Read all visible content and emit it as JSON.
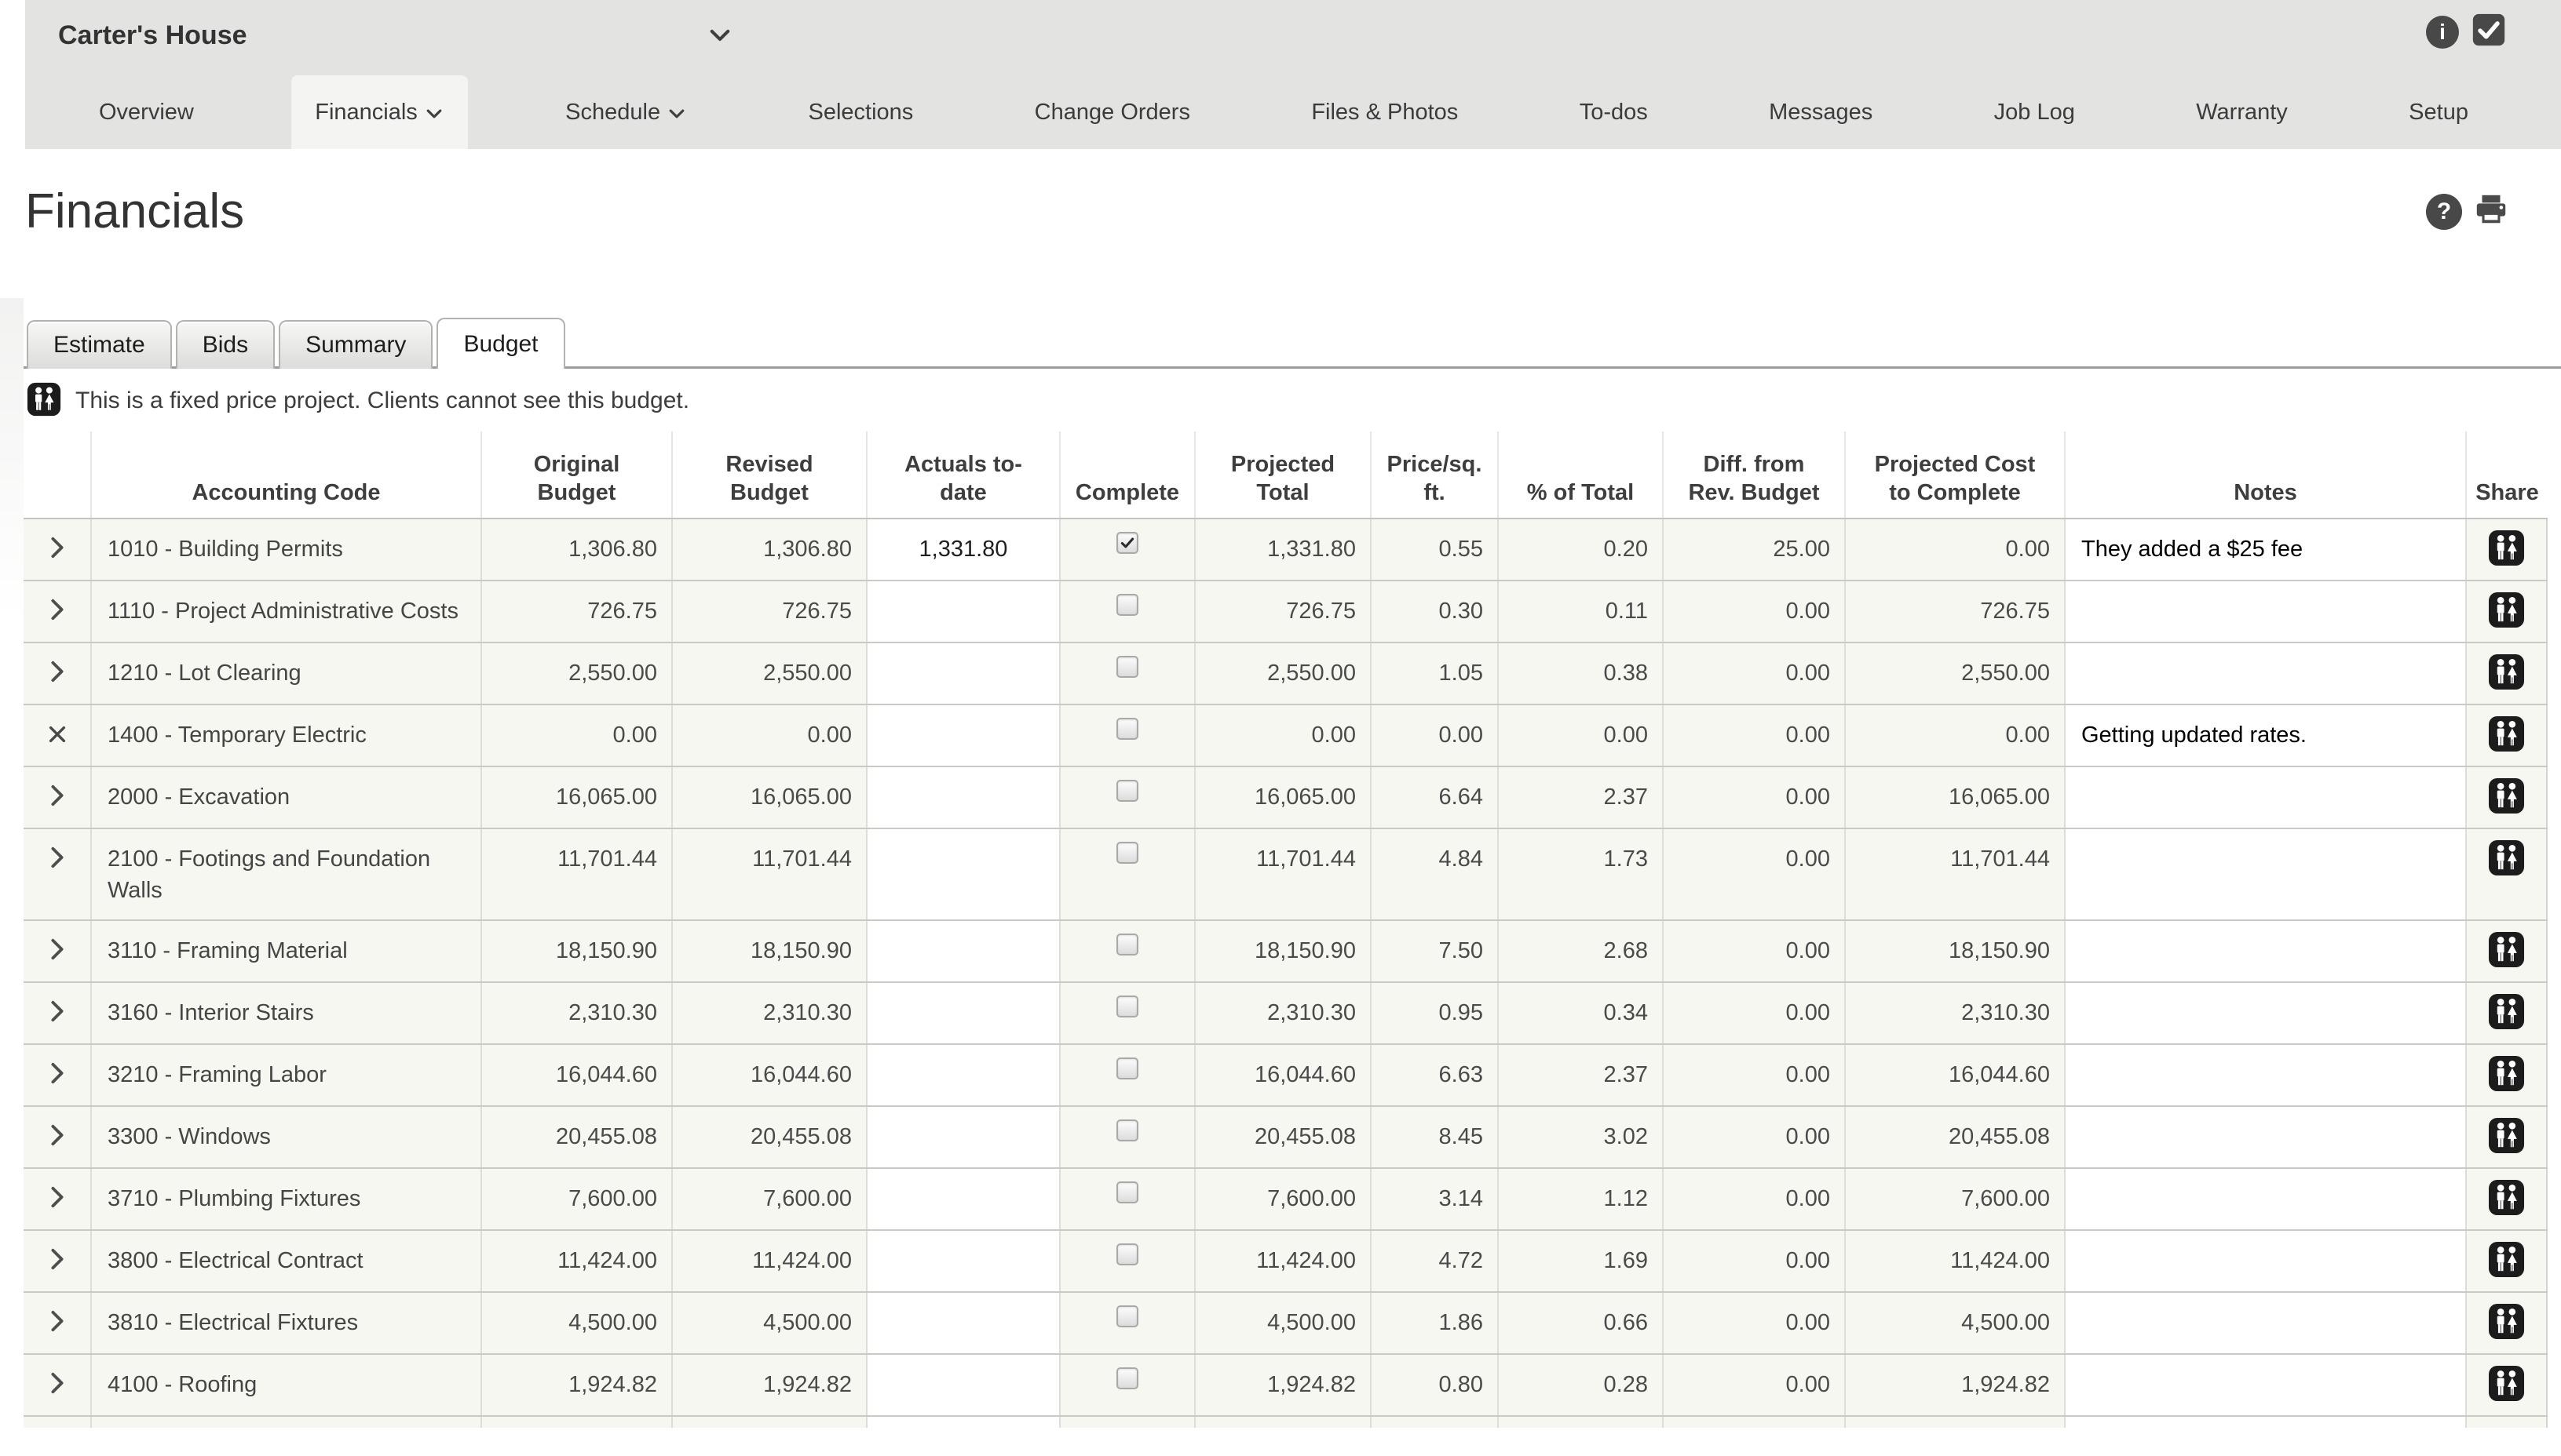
{
  "colors": {
    "topbar_bg": "#e3e3e2",
    "row_bg": "#f7f7f1",
    "icon_black": "#1c1c1c",
    "accent_text": "#3c3c3c"
  },
  "header": {
    "project_name": "Carter's House",
    "icons": [
      "chevron-down-icon",
      "info-icon",
      "selected-check-icon"
    ]
  },
  "nav": {
    "items": [
      {
        "label": "Overview"
      },
      {
        "label": "Financials",
        "active": true,
        "caret": true
      },
      {
        "label": "Schedule",
        "caret": true
      },
      {
        "label": "Selections"
      },
      {
        "label": "Change Orders"
      },
      {
        "label": "Files & Photos"
      },
      {
        "label": "To-dos"
      },
      {
        "label": "Messages"
      },
      {
        "label": "Job Log"
      },
      {
        "label": "Warranty"
      },
      {
        "label": "Setup"
      }
    ]
  },
  "page": {
    "title": "Financials",
    "icons": [
      "help-icon",
      "print-icon"
    ]
  },
  "financial_tabs": {
    "items": [
      {
        "label": "Estimate"
      },
      {
        "label": "Bids"
      },
      {
        "label": "Summary"
      },
      {
        "label": "Budget",
        "active": true
      }
    ]
  },
  "notice": {
    "icon": "clients-people-icon",
    "text": "This is a fixed price project. Clients cannot see this budget."
  },
  "table": {
    "columns": [
      {
        "key": "expand",
        "label": ""
      },
      {
        "key": "code",
        "label": "Accounting Code"
      },
      {
        "key": "original",
        "label": "Original\nBudget"
      },
      {
        "key": "revised",
        "label": "Revised\nBudget"
      },
      {
        "key": "actuals",
        "label": "Actuals to-\ndate"
      },
      {
        "key": "complete",
        "label": "Complete"
      },
      {
        "key": "projected",
        "label": "Projected\nTotal"
      },
      {
        "key": "price_sqft",
        "label": "Price/sq.\nft."
      },
      {
        "key": "pct_total",
        "label": "% of Total"
      },
      {
        "key": "diff_rev",
        "label": "Diff. from\nRev. Budget"
      },
      {
        "key": "cost_to_complete",
        "label": "Projected Cost\nto Complete"
      },
      {
        "key": "notes",
        "label": "Notes"
      },
      {
        "key": "share",
        "label": "Share"
      }
    ],
    "rows": [
      {
        "expand": "chevron",
        "code": "1010 - Building Permits",
        "original_budget": "1,306.80",
        "revised_budget": "1,306.80",
        "actuals_to_date": "1,331.80",
        "complete": true,
        "projected_total": "1,331.80",
        "price_sqft": "0.55",
        "pct_total": "0.20",
        "diff_rev": "25.00",
        "cost_to_complete": "0.00",
        "notes": "They added a $25 fee"
      },
      {
        "expand": "chevron",
        "code": "1110 - Project Administrative Costs",
        "original_budget": "726.75",
        "revised_budget": "726.75",
        "actuals_to_date": "",
        "complete": false,
        "projected_total": "726.75",
        "price_sqft": "0.30",
        "pct_total": "0.11",
        "diff_rev": "0.00",
        "cost_to_complete": "726.75",
        "notes": ""
      },
      {
        "expand": "chevron",
        "code": "1210 - Lot Clearing",
        "original_budget": "2,550.00",
        "revised_budget": "2,550.00",
        "actuals_to_date": "",
        "complete": false,
        "projected_total": "2,550.00",
        "price_sqft": "1.05",
        "pct_total": "0.38",
        "diff_rev": "0.00",
        "cost_to_complete": "2,550.00",
        "notes": ""
      },
      {
        "expand": "close",
        "code": "1400 - Temporary Electric",
        "original_budget": "0.00",
        "revised_budget": "0.00",
        "actuals_to_date": "",
        "complete": false,
        "projected_total": "0.00",
        "price_sqft": "0.00",
        "pct_total": "0.00",
        "diff_rev": "0.00",
        "cost_to_complete": "0.00",
        "notes": "Getting updated rates."
      },
      {
        "expand": "chevron",
        "code": "2000 - Excavation",
        "original_budget": "16,065.00",
        "revised_budget": "16,065.00",
        "actuals_to_date": "",
        "complete": false,
        "projected_total": "16,065.00",
        "price_sqft": "6.64",
        "pct_total": "2.37",
        "diff_rev": "0.00",
        "cost_to_complete": "16,065.00",
        "notes": ""
      },
      {
        "expand": "chevron",
        "code": "2100 - Footings and Foundation Walls",
        "original_budget": "11,701.44",
        "revised_budget": "11,701.44",
        "actuals_to_date": "",
        "complete": false,
        "projected_total": "11,701.44",
        "price_sqft": "4.84",
        "pct_total": "1.73",
        "diff_rev": "0.00",
        "cost_to_complete": "11,701.44",
        "notes": ""
      },
      {
        "expand": "chevron",
        "code": "3110 - Framing Material",
        "original_budget": "18,150.90",
        "revised_budget": "18,150.90",
        "actuals_to_date": "",
        "complete": false,
        "projected_total": "18,150.90",
        "price_sqft": "7.50",
        "pct_total": "2.68",
        "diff_rev": "0.00",
        "cost_to_complete": "18,150.90",
        "notes": ""
      },
      {
        "expand": "chevron",
        "code": "3160 - Interior Stairs",
        "original_budget": "2,310.30",
        "revised_budget": "2,310.30",
        "actuals_to_date": "",
        "complete": false,
        "projected_total": "2,310.30",
        "price_sqft": "0.95",
        "pct_total": "0.34",
        "diff_rev": "0.00",
        "cost_to_complete": "2,310.30",
        "notes": ""
      },
      {
        "expand": "chevron",
        "code": "3210 - Framing Labor",
        "original_budget": "16,044.60",
        "revised_budget": "16,044.60",
        "actuals_to_date": "",
        "complete": false,
        "projected_total": "16,044.60",
        "price_sqft": "6.63",
        "pct_total": "2.37",
        "diff_rev": "0.00",
        "cost_to_complete": "16,044.60",
        "notes": ""
      },
      {
        "expand": "chevron",
        "code": "3300 - Windows",
        "original_budget": "20,455.08",
        "revised_budget": "20,455.08",
        "actuals_to_date": "",
        "complete": false,
        "projected_total": "20,455.08",
        "price_sqft": "8.45",
        "pct_total": "3.02",
        "diff_rev": "0.00",
        "cost_to_complete": "20,455.08",
        "notes": ""
      },
      {
        "expand": "chevron",
        "code": "3710 - Plumbing Fixtures",
        "original_budget": "7,600.00",
        "revised_budget": "7,600.00",
        "actuals_to_date": "",
        "complete": false,
        "projected_total": "7,600.00",
        "price_sqft": "3.14",
        "pct_total": "1.12",
        "diff_rev": "0.00",
        "cost_to_complete": "7,600.00",
        "notes": ""
      },
      {
        "expand": "chevron",
        "code": "3800 - Electrical Contract",
        "original_budget": "11,424.00",
        "revised_budget": "11,424.00",
        "actuals_to_date": "",
        "complete": false,
        "projected_total": "11,424.00",
        "price_sqft": "4.72",
        "pct_total": "1.69",
        "diff_rev": "0.00",
        "cost_to_complete": "11,424.00",
        "notes": ""
      },
      {
        "expand": "chevron",
        "code": "3810 - Electrical Fixtures",
        "original_budget": "4,500.00",
        "revised_budget": "4,500.00",
        "actuals_to_date": "",
        "complete": false,
        "projected_total": "4,500.00",
        "price_sqft": "1.86",
        "pct_total": "0.66",
        "diff_rev": "0.00",
        "cost_to_complete": "4,500.00",
        "notes": ""
      },
      {
        "expand": "chevron",
        "code": "4100 - Roofing",
        "original_budget": "1,924.82",
        "revised_budget": "1,924.82",
        "actuals_to_date": "",
        "complete": false,
        "projected_total": "1,924.82",
        "price_sqft": "0.80",
        "pct_total": "0.28",
        "diff_rev": "0.00",
        "cost_to_complete": "1,924.82",
        "notes": ""
      }
    ]
  }
}
